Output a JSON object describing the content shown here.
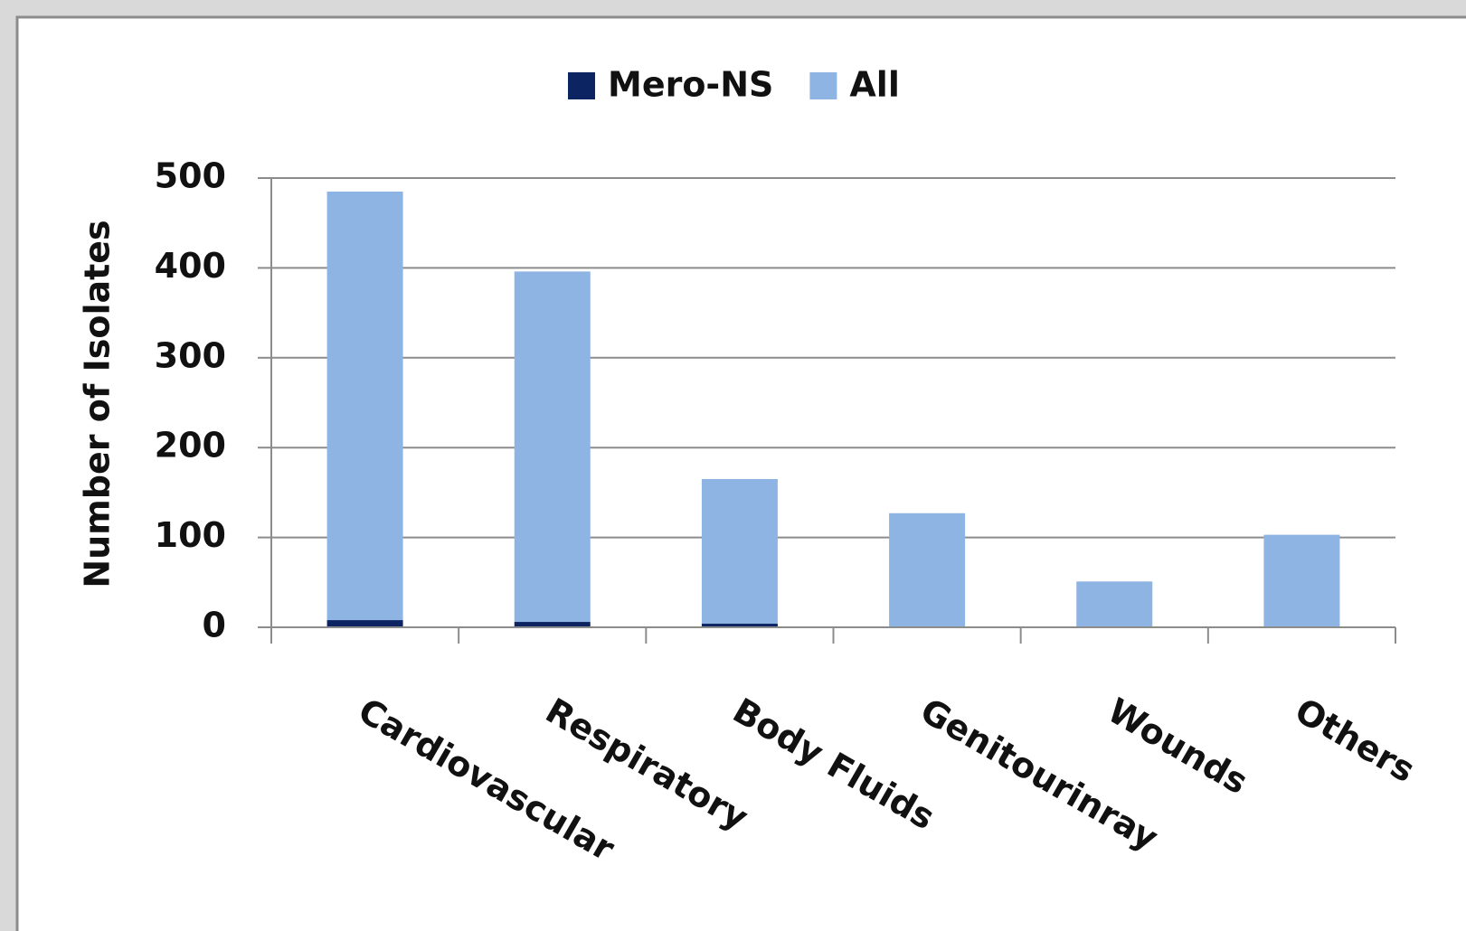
{
  "chart_data": {
    "type": "stacked_bar",
    "y_label": "Number of Isolates",
    "categories": [
      "Cardiovascular",
      "Respiratory",
      "Body Fluids",
      "Genitourinray",
      "Wounds",
      "Others"
    ],
    "series": [
      {
        "name": "Mero-NS",
        "color": "#0c2461",
        "values": [
          8,
          6,
          4,
          0,
          0,
          0
        ]
      },
      {
        "name": "All",
        "color": "#8eb4e3",
        "values": [
          477,
          390,
          161,
          127,
          51,
          103
        ]
      }
    ],
    "ylim": [
      0,
      500
    ],
    "yticks": [
      0,
      100,
      200,
      300,
      400,
      500
    ],
    "grid": true,
    "legend": "top"
  }
}
